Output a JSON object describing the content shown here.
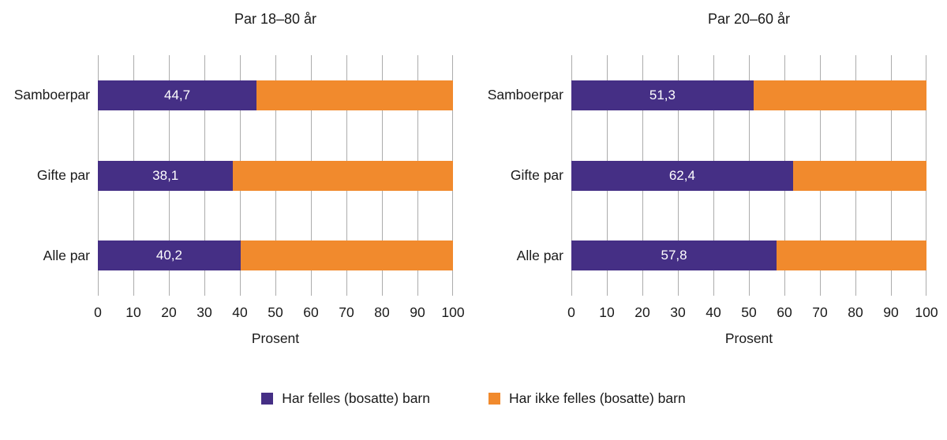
{
  "colors": {
    "purple": "#452F85",
    "orange": "#F18A2D",
    "gridline": "#ACACAC",
    "bar_label": "#FFFFFF",
    "text": "#1A1A1A"
  },
  "figure": {
    "legend_items": [
      {
        "label": "Har felles (bosatte) barn",
        "color_key": "purple"
      },
      {
        "label": "Har ikke felles (bosatte) barn",
        "color_key": "orange"
      }
    ]
  },
  "chart_data": [
    {
      "type": "bar",
      "orientation": "horizontal",
      "stacked": true,
      "title": "Par 18–80 år",
      "xlabel": "Prosent",
      "xlim": [
        0,
        100
      ],
      "xticks": [
        0,
        10,
        20,
        30,
        40,
        50,
        60,
        70,
        80,
        90,
        100
      ],
      "grid": "vertical",
      "categories": [
        "Samboerpar",
        "Gifte par",
        "Alle par"
      ],
      "series": [
        {
          "name": "Har felles (bosatte) barn",
          "values": [
            44.7,
            38.1,
            40.2
          ]
        },
        {
          "name": "Har ikke felles (bosatte) barn",
          "values": [
            55.3,
            61.9,
            59.8
          ]
        }
      ],
      "bar_labels": [
        "44,7",
        "38,1",
        "40,2"
      ]
    },
    {
      "type": "bar",
      "orientation": "horizontal",
      "stacked": true,
      "title": "Par 20–60 år",
      "xlabel": "Prosent",
      "xlim": [
        0,
        100
      ],
      "xticks": [
        0,
        10,
        20,
        30,
        40,
        50,
        60,
        70,
        80,
        90,
        100
      ],
      "grid": "vertical",
      "categories": [
        "Samboerpar",
        "Gifte par",
        "Alle par"
      ],
      "series": [
        {
          "name": "Har felles (bosatte) barn",
          "values": [
            51.3,
            62.4,
            57.8
          ]
        },
        {
          "name": "Har ikke felles (bosatte) barn",
          "values": [
            48.7,
            37.6,
            42.2
          ]
        }
      ],
      "bar_labels": [
        "51,3",
        "62,4",
        "57,8"
      ]
    }
  ]
}
